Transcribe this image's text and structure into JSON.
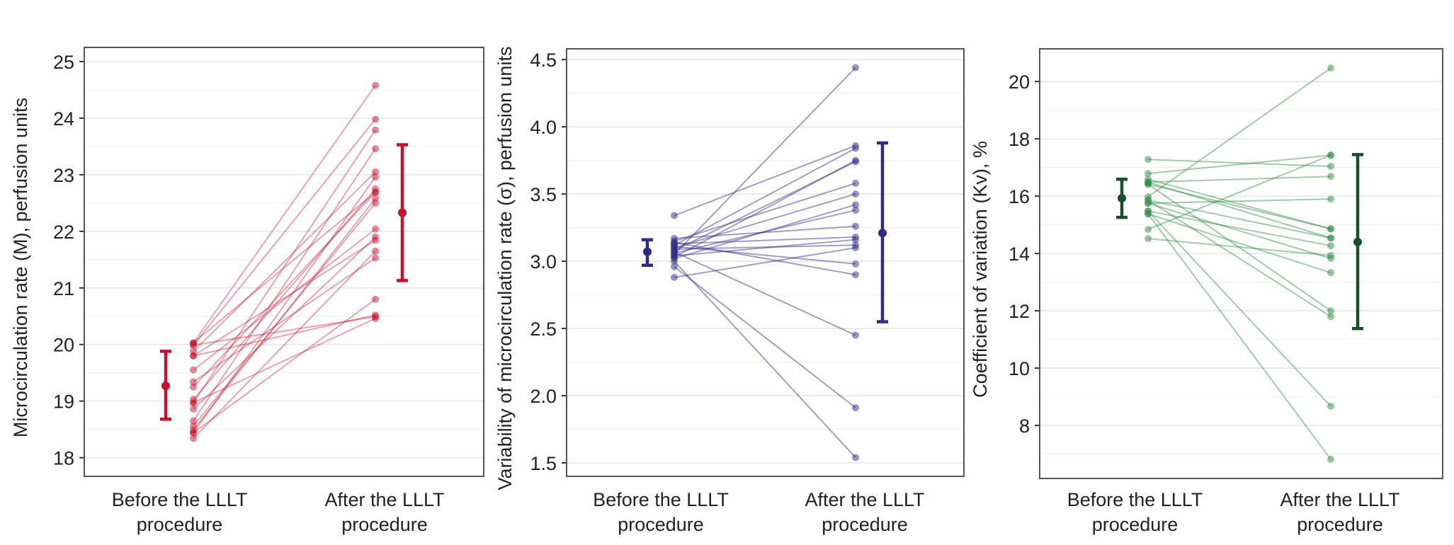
{
  "figure": {
    "panels": 3
  },
  "chart_data": [
    {
      "type": "line",
      "subtype": "paired-dot-plot with mean ± SD error bars",
      "title": "",
      "ylabel": "Microcirculation rate (M), perfusion units",
      "xlabel": "",
      "categories": [
        "Before the LLLT procedure",
        "After the LLLT procedure"
      ],
      "category_lines": [
        [
          "Before the LLLT",
          "procedure"
        ],
        [
          "After the LLLT",
          "procedure"
        ]
      ],
      "ylim": [
        17.67,
        25.25
      ],
      "yticks": [
        18,
        19,
        20,
        21,
        22,
        23,
        24,
        25
      ],
      "ytick_labels": [
        "18",
        "19",
        "20",
        "21",
        "22",
        "23",
        "24",
        "25"
      ],
      "grid": true,
      "color": "#c8102e",
      "pairs": [
        [
          20.03,
          24.58
        ],
        [
          19.99,
          23.98
        ],
        [
          18.97,
          23.79
        ],
        [
          18.65,
          23.46
        ],
        [
          19.88,
          23.05
        ],
        [
          18.44,
          22.96
        ],
        [
          19.25,
          22.69
        ],
        [
          19.03,
          22.75
        ],
        [
          20.03,
          22.69
        ],
        [
          18.56,
          22.5
        ],
        [
          18.49,
          22.58
        ],
        [
          19.55,
          22.04
        ],
        [
          18.86,
          21.9
        ],
        [
          19.8,
          21.84
        ],
        [
          18.34,
          21.65
        ],
        [
          19.34,
          21.53
        ],
        [
          18.44,
          20.8
        ],
        [
          19.99,
          20.49
        ],
        [
          19.8,
          20.52
        ],
        [
          18.97,
          20.46
        ]
      ],
      "summary": {
        "before": {
          "mean": 19.27,
          "lower": 18.68,
          "upper": 19.88
        },
        "after": {
          "mean": 22.33,
          "lower": 21.13,
          "upper": 23.53
        }
      }
    },
    {
      "type": "line",
      "subtype": "paired-dot-plot with mean ± SD error bars",
      "title": "",
      "ylabel": "Variability of microcirculation rate (σ), perfusion units",
      "xlabel": "",
      "categories": [
        "Before the LLLT procedure",
        "After the LLLT procedure"
      ],
      "category_lines": [
        [
          "Before the LLLT",
          "procedure"
        ],
        [
          "After the LLLT",
          "procedure"
        ]
      ],
      "ylim": [
        1.4,
        4.58
      ],
      "yticks": [
        1.5,
        2.0,
        2.5,
        3.0,
        3.5,
        4.0,
        4.5
      ],
      "ytick_labels": [
        "1.5",
        "2.0",
        "2.5",
        "3.0",
        "3.5",
        "4.0",
        "4.5"
      ],
      "grid": true,
      "color": "#2e2a85",
      "pairs": [
        [
          3.05,
          4.44
        ],
        [
          3.34,
          3.86
        ],
        [
          3.12,
          3.84
        ],
        [
          3.03,
          3.75
        ],
        [
          3.08,
          3.74
        ],
        [
          3.15,
          3.58
        ],
        [
          3.1,
          3.5
        ],
        [
          3.02,
          3.42
        ],
        [
          3.06,
          3.38
        ],
        [
          3.17,
          3.26
        ],
        [
          3.13,
          3.18
        ],
        [
          3.04,
          3.16
        ],
        [
          3.09,
          3.12
        ],
        [
          2.88,
          3.1
        ],
        [
          3.11,
          2.98
        ],
        [
          3.14,
          2.9
        ],
        [
          3.07,
          2.45
        ],
        [
          2.96,
          1.91
        ],
        [
          3.0,
          1.54
        ]
      ],
      "summary": {
        "before": {
          "mean": 3.07,
          "lower": 2.97,
          "upper": 3.16
        },
        "after": {
          "mean": 3.21,
          "lower": 2.55,
          "upper": 3.88
        }
      }
    },
    {
      "type": "line",
      "subtype": "paired-dot-plot with mean ± SD error bars",
      "title": "",
      "ylabel": "Coefficient of variation (Kv), %",
      "xlabel": "",
      "categories": [
        "Before the LLLT procedure",
        "After the LLLT procedure"
      ],
      "category_lines": [
        [
          "Before the LLLT",
          "procedure"
        ],
        [
          "After the LLLT",
          "procedure"
        ]
      ],
      "ylim": [
        6.15,
        21.14
      ],
      "yticks": [
        8,
        10,
        12,
        14,
        16,
        18,
        20
      ],
      "ytick_labels": [
        "8",
        "10",
        "12",
        "14",
        "16",
        "18",
        "20"
      ],
      "grid": true,
      "color": "#2e8b45",
      "pairs": [
        [
          15.98,
          20.47
        ],
        [
          14.84,
          17.43
        ],
        [
          16.79,
          17.43
        ],
        [
          17.28,
          17.04
        ],
        [
          16.49,
          16.69
        ],
        [
          15.75,
          15.9
        ],
        [
          16.59,
          14.86
        ],
        [
          16.42,
          14.86
        ],
        [
          15.86,
          14.54
        ],
        [
          16.49,
          14.54
        ],
        [
          15.48,
          14.27
        ],
        [
          14.52,
          13.93
        ],
        [
          15.75,
          13.83
        ],
        [
          15.38,
          13.33
        ],
        [
          16.42,
          12.0
        ],
        [
          15.86,
          11.8
        ],
        [
          15.48,
          8.67
        ],
        [
          15.38,
          6.82
        ]
      ],
      "summary": {
        "before": {
          "mean": 15.93,
          "lower": 15.26,
          "upper": 16.59
        },
        "after": {
          "mean": 14.4,
          "lower": 11.38,
          "upper": 17.45
        }
      }
    }
  ]
}
